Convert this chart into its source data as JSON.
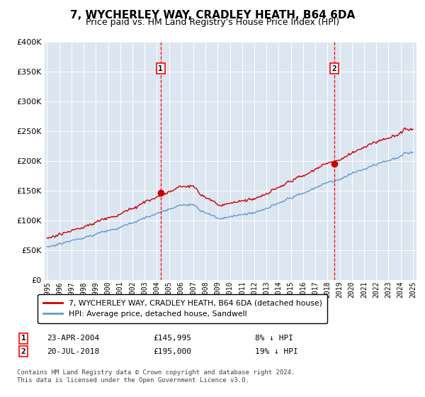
{
  "title": "7, WYCHERLEY WAY, CRADLEY HEATH, B64 6DA",
  "subtitle": "Price paid vs. HM Land Registry's House Price Index (HPI)",
  "legend_label_red": "7, WYCHERLEY WAY, CRADLEY HEATH, B64 6DA (detached house)",
  "legend_label_blue": "HPI: Average price, detached house, Sandwell",
  "footnote_line1": "Contains HM Land Registry data © Crown copyright and database right 2024.",
  "footnote_line2": "This data is licensed under the Open Government Licence v3.0.",
  "sale1_date": "23-APR-2004",
  "sale1_price": "£145,995",
  "sale1_note": "8% ↓ HPI",
  "sale2_date": "20-JUL-2018",
  "sale2_price": "£195,000",
  "sale2_note": "19% ↓ HPI",
  "ylim": [
    0,
    400000
  ],
  "yticks": [
    0,
    50000,
    100000,
    150000,
    200000,
    250000,
    300000,
    350000,
    400000
  ],
  "bg_color": "#dce6f1",
  "red_color": "#cc0000",
  "blue_color": "#6699cc",
  "sale1_year": 2004.31,
  "sale2_year": 2018.55,
  "sale1_price_val": 145995,
  "sale2_price_val": 195000
}
